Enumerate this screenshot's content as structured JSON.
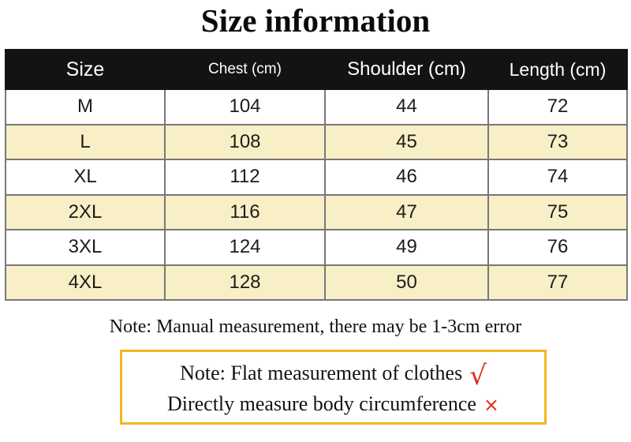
{
  "title": "Size information",
  "table": {
    "headers": [
      {
        "label": "Size"
      },
      {
        "label": "Chest (cm)"
      },
      {
        "label": "Shoulder (cm)"
      },
      {
        "label": "Length (cm)"
      }
    ],
    "rows": [
      {
        "size": "M",
        "chest": "104",
        "shoulder": "44",
        "length": "72"
      },
      {
        "size": "L",
        "chest": "108",
        "shoulder": "45",
        "length": "73"
      },
      {
        "size": "XL",
        "chest": "112",
        "shoulder": "46",
        "length": "74"
      },
      {
        "size": "2XL",
        "chest": "116",
        "shoulder": "47",
        "length": "75"
      },
      {
        "size": "3XL",
        "chest": "124",
        "shoulder": "49",
        "length": "76"
      },
      {
        "size": "4XL",
        "chest": "128",
        "shoulder": "50",
        "length": "77"
      }
    ]
  },
  "notes": {
    "manual": "Note: Manual measurement, there may be 1-3cm error",
    "box": [
      {
        "text": "Note: Flat measurement of clothes",
        "mark": "√",
        "mark_icon": "check-mark"
      },
      {
        "text": "Directly measure body circumference",
        "mark": "×",
        "mark_icon": "cross-mark"
      }
    ]
  },
  "colors": {
    "header_bg": "#131313",
    "header_text": "#ffffff",
    "row_alt_bg": "#f9efc6",
    "table_border": "#777777",
    "note_box_border": "#f5b71f",
    "mark_red": "#e02a21"
  },
  "chart_data": {
    "type": "table",
    "title": "Size information",
    "columns": [
      "Size",
      "Chest (cm)",
      "Shoulder (cm)",
      "Length (cm)"
    ],
    "rows": [
      [
        "M",
        104,
        44,
        72
      ],
      [
        "L",
        108,
        45,
        73
      ],
      [
        "XL",
        112,
        46,
        74
      ],
      [
        "2XL",
        116,
        47,
        75
      ],
      [
        "3XL",
        124,
        49,
        76
      ],
      [
        "4XL",
        128,
        50,
        77
      ]
    ],
    "row_shading": "alternating cream (#f9efc6) starting at row L",
    "notes": [
      "Note: Manual measurement, there may be 1-3cm error",
      "Note: Flat measurement of clothes √",
      "Directly measure body circumference ×"
    ]
  }
}
